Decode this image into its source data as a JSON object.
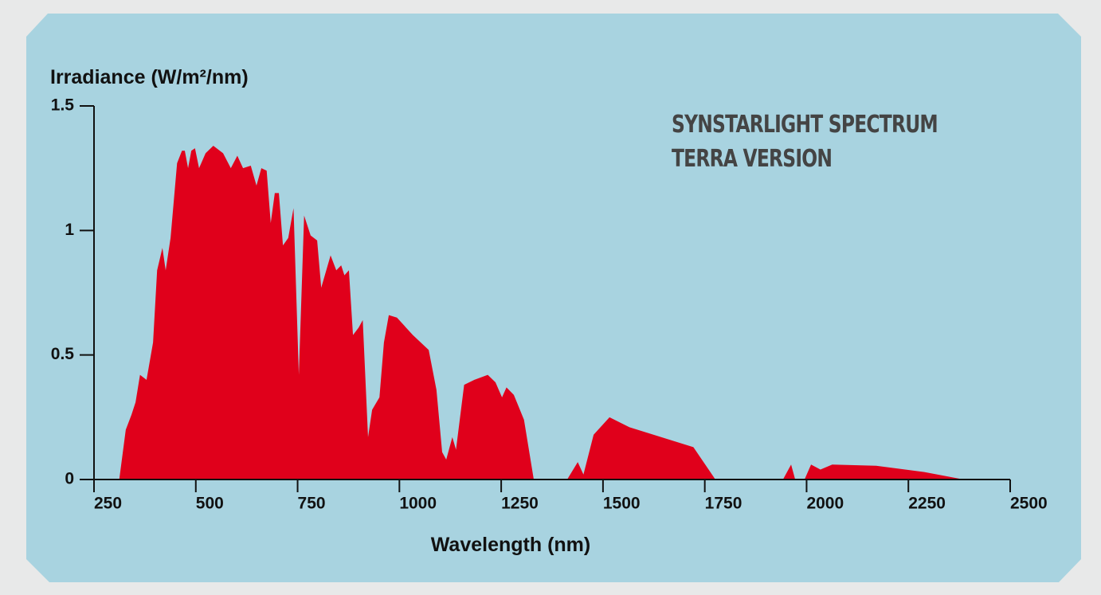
{
  "chart_data": {
    "type": "area",
    "ylabel": "Irradiance (W/m²/nm)",
    "xlabel": "Wavelength (nm)",
    "annotations": [
      "SYNSTARLIGHT SPECTRUM",
      "TERRA VERSION"
    ],
    "color": "#e0001b",
    "xlim": [
      250,
      2500
    ],
    "xticks": [
      250,
      500,
      750,
      1000,
      1250,
      1500,
      1750,
      2000,
      2250,
      2500
    ],
    "ylim": [
      0,
      1.5
    ],
    "yticks": [
      0,
      0.5,
      1,
      1.5
    ],
    "x": [
      312,
      328,
      342,
      352,
      363,
      379,
      395,
      405,
      418,
      426,
      438,
      454,
      466,
      473,
      481,
      489,
      498,
      508,
      524,
      543,
      567,
      586,
      602,
      616,
      635,
      649,
      661,
      674,
      684,
      694,
      704,
      714,
      727,
      740,
      753,
      766,
      782,
      798,
      808,
      831,
      845,
      857,
      865,
      876,
      886,
      900,
      910,
      923,
      933,
      951,
      962,
      974,
      994,
      1033,
      1072,
      1091,
      1105,
      1115,
      1130,
      1139,
      1159,
      1184,
      1217,
      1236,
      1252,
      1263,
      1281,
      1306,
      1330,
      null,
      1412,
      1438,
      1452,
      1477,
      1516,
      1565,
      1722,
      1776,
      null,
      1942,
      1962,
      1972,
      null,
      1995,
      2011,
      2034,
      2063,
      2171,
      2289,
      2386
    ],
    "values": [
      0,
      0.2,
      0.26,
      0.31,
      0.42,
      0.4,
      0.55,
      0.84,
      0.93,
      0.84,
      0.97,
      1.27,
      1.32,
      1.32,
      1.25,
      1.32,
      1.33,
      1.25,
      1.31,
      1.34,
      1.31,
      1.25,
      1.3,
      1.25,
      1.26,
      1.18,
      1.25,
      1.24,
      1.03,
      1.15,
      1.15,
      0.94,
      0.97,
      1.09,
      0.42,
      1.06,
      0.98,
      0.96,
      0.77,
      0.9,
      0.84,
      0.86,
      0.82,
      0.84,
      0.58,
      0.61,
      0.64,
      0.17,
      0.28,
      0.33,
      0.55,
      0.66,
      0.65,
      0.58,
      0.52,
      0.36,
      0.11,
      0.08,
      0.17,
      0.12,
      0.38,
      0.4,
      0.42,
      0.39,
      0.33,
      0.37,
      0.34,
      0.24,
      0,
      null,
      0,
      0.07,
      0.02,
      0.18,
      0.25,
      0.21,
      0.13,
      0,
      null,
      0,
      0.06,
      0,
      null,
      0,
      0.06,
      0.04,
      0.06,
      0.055,
      0.03,
      0
    ]
  }
}
